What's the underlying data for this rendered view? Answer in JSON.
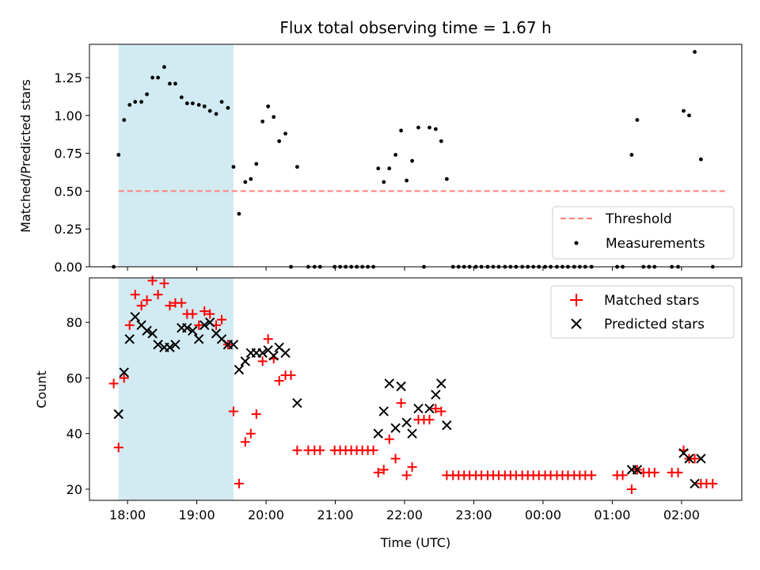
{
  "chart_data": [
    {
      "type": "scatter",
      "title": "Flux total observing time = 1.67 h",
      "ylabel": "Matched/Predicted stars",
      "xlabel": "",
      "x_unit": "time (UTC, hours; values past 24 are after midnight)",
      "xlim": [
        17.45,
        26.87
      ],
      "ylim": [
        0,
        1.47
      ],
      "yticks": [
        0.0,
        0.25,
        0.5,
        0.75,
        1.0,
        1.25
      ],
      "ytick_labels": [
        "0.00",
        "0.25",
        "0.50",
        "0.75",
        "1.00",
        "1.25"
      ],
      "xticks": [
        18,
        19,
        20,
        21,
        22,
        23,
        24,
        25,
        26
      ],
      "shaded_region": {
        "x": [
          17.87,
          19.53
        ],
        "color": "#add8e6"
      },
      "threshold": {
        "name": "Threshold",
        "value": 0.5,
        "x": [
          17.87,
          26.67
        ],
        "color": "#ff7f7f"
      },
      "legend": {
        "position": "lower-right",
        "entries": [
          "Threshold",
          "Measurements"
        ]
      },
      "series": [
        {
          "name": "Measurements",
          "marker": "dot",
          "color": "#000000",
          "points": [
            [
              17.8,
              0
            ],
            [
              17.87,
              0.74
            ],
            [
              17.95,
              0.97
            ],
            [
              18.03,
              1.07
            ],
            [
              18.11,
              1.09
            ],
            [
              18.2,
              1.09
            ],
            [
              18.28,
              1.14
            ],
            [
              18.36,
              1.25
            ],
            [
              18.44,
              1.25
            ],
            [
              18.53,
              1.32
            ],
            [
              18.61,
              1.21
            ],
            [
              18.69,
              1.21
            ],
            [
              18.78,
              1.12
            ],
            [
              18.86,
              1.08
            ],
            [
              18.94,
              1.08
            ],
            [
              19.03,
              1.07
            ],
            [
              19.11,
              1.06
            ],
            [
              19.19,
              1.03
            ],
            [
              19.28,
              1.01
            ],
            [
              19.36,
              1.09
            ],
            [
              19.45,
              1.05
            ],
            [
              19.53,
              0.66
            ],
            [
              19.61,
              0.35
            ],
            [
              19.7,
              0.56
            ],
            [
              19.78,
              0.58
            ],
            [
              19.86,
              0.68
            ],
            [
              19.95,
              0.96
            ],
            [
              20.03,
              1.06
            ],
            [
              20.11,
              0.99
            ],
            [
              20.19,
              0.83
            ],
            [
              20.28,
              0.88
            ],
            [
              20.36,
              0
            ],
            [
              20.45,
              0.66
            ],
            [
              20.61,
              0
            ],
            [
              20.7,
              0
            ],
            [
              20.78,
              0
            ],
            [
              20.99,
              0
            ],
            [
              21.07,
              0
            ],
            [
              21.15,
              0
            ],
            [
              21.23,
              0
            ],
            [
              21.31,
              0
            ],
            [
              21.39,
              0
            ],
            [
              21.47,
              0
            ],
            [
              21.55,
              0
            ],
            [
              21.62,
              0.65
            ],
            [
              21.7,
              0.56
            ],
            [
              21.78,
              0.65
            ],
            [
              21.87,
              0.74
            ],
            [
              21.95,
              0.9
            ],
            [
              22.03,
              0.57
            ],
            [
              22.11,
              0.7
            ],
            [
              22.2,
              0.92
            ],
            [
              22.28,
              0
            ],
            [
              22.36,
              0.92
            ],
            [
              22.45,
              0.91
            ],
            [
              22.53,
              0.83
            ],
            [
              22.61,
              0.58
            ],
            [
              22.7,
              0
            ],
            [
              22.78,
              0
            ],
            [
              22.86,
              0
            ],
            [
              22.94,
              0
            ],
            [
              23.03,
              0
            ],
            [
              23.11,
              0
            ],
            [
              23.2,
              0
            ],
            [
              23.28,
              0
            ],
            [
              23.36,
              0
            ],
            [
              23.45,
              0
            ],
            [
              23.53,
              0
            ],
            [
              23.61,
              0
            ],
            [
              23.7,
              0
            ],
            [
              23.78,
              0
            ],
            [
              23.86,
              0
            ],
            [
              23.94,
              0
            ],
            [
              24.03,
              0
            ],
            [
              24.11,
              0
            ],
            [
              24.2,
              0
            ],
            [
              24.28,
              0
            ],
            [
              24.36,
              0
            ],
            [
              24.45,
              0
            ],
            [
              24.53,
              0
            ],
            [
              24.61,
              0
            ],
            [
              24.7,
              0
            ],
            [
              25.07,
              0
            ],
            [
              25.15,
              0
            ],
            [
              25.28,
              0.74
            ],
            [
              25.36,
              0.97
            ],
            [
              25.45,
              0
            ],
            [
              25.53,
              0
            ],
            [
              25.61,
              0
            ],
            [
              25.86,
              0
            ],
            [
              25.95,
              0
            ],
            [
              26.03,
              1.03
            ],
            [
              26.11,
              1.0
            ],
            [
              26.19,
              1.42
            ],
            [
              26.28,
              0.71
            ],
            [
              26.45,
              0
            ]
          ]
        }
      ]
    },
    {
      "type": "scatter",
      "title": "",
      "xlabel": "Time (UTC)",
      "ylabel": "Count",
      "xlim": [
        17.45,
        26.87
      ],
      "ylim": [
        16,
        96
      ],
      "yticks": [
        20,
        40,
        60,
        80
      ],
      "ytick_labels": [
        "20",
        "40",
        "60",
        "80"
      ],
      "xticks": [
        18,
        19,
        20,
        21,
        22,
        23,
        24,
        25,
        26
      ],
      "xtick_labels": [
        "18:00",
        "19:00",
        "20:00",
        "21:00",
        "22:00",
        "23:00",
        "00:00",
        "01:00",
        "02:00"
      ],
      "shaded_region": {
        "x": [
          17.87,
          19.53
        ],
        "color": "#add8e6"
      },
      "legend": {
        "position": "top-right",
        "entries": [
          "Matched stars",
          "Predicted stars"
        ]
      },
      "series": [
        {
          "name": "Matched stars",
          "marker": "plus",
          "color": "#ff0000",
          "points": [
            [
              17.8,
              58
            ],
            [
              17.87,
              35
            ],
            [
              17.95,
              60
            ],
            [
              18.03,
              79
            ],
            [
              18.11,
              90
            ],
            [
              18.2,
              86
            ],
            [
              18.28,
              88
            ],
            [
              18.36,
              95
            ],
            [
              18.44,
              90
            ],
            [
              18.53,
              94
            ],
            [
              18.61,
              86
            ],
            [
              18.69,
              87
            ],
            [
              18.78,
              87
            ],
            [
              18.86,
              83
            ],
            [
              18.94,
              83
            ],
            [
              19.03,
              79
            ],
            [
              19.11,
              84
            ],
            [
              19.19,
              83
            ],
            [
              19.28,
              79
            ],
            [
              19.36,
              81
            ],
            [
              19.45,
              72
            ],
            [
              19.53,
              48
            ],
            [
              19.61,
              22
            ],
            [
              19.7,
              37
            ],
            [
              19.78,
              40
            ],
            [
              19.86,
              47
            ],
            [
              19.95,
              66
            ],
            [
              20.03,
              74
            ],
            [
              20.11,
              67
            ],
            [
              20.19,
              59
            ],
            [
              20.28,
              61
            ],
            [
              20.36,
              61
            ],
            [
              20.45,
              34
            ],
            [
              20.61,
              34
            ],
            [
              20.7,
              34
            ],
            [
              20.78,
              34
            ],
            [
              20.99,
              34
            ],
            [
              21.07,
              34
            ],
            [
              21.15,
              34
            ],
            [
              21.23,
              34
            ],
            [
              21.31,
              34
            ],
            [
              21.39,
              34
            ],
            [
              21.47,
              34
            ],
            [
              21.55,
              34
            ],
            [
              21.62,
              26
            ],
            [
              21.7,
              27
            ],
            [
              21.78,
              38
            ],
            [
              21.87,
              31
            ],
            [
              21.95,
              51
            ],
            [
              22.03,
              25
            ],
            [
              22.11,
              28
            ],
            [
              22.2,
              45
            ],
            [
              22.28,
              45
            ],
            [
              22.36,
              45
            ],
            [
              22.45,
              49
            ],
            [
              22.53,
              48
            ],
            [
              22.61,
              25
            ],
            [
              22.7,
              25
            ],
            [
              22.78,
              25
            ],
            [
              22.86,
              25
            ],
            [
              22.94,
              25
            ],
            [
              23.03,
              25
            ],
            [
              23.11,
              25
            ],
            [
              23.2,
              25
            ],
            [
              23.28,
              25
            ],
            [
              23.36,
              25
            ],
            [
              23.45,
              25
            ],
            [
              23.53,
              25
            ],
            [
              23.61,
              25
            ],
            [
              23.7,
              25
            ],
            [
              23.78,
              25
            ],
            [
              23.86,
              25
            ],
            [
              23.94,
              25
            ],
            [
              24.03,
              25
            ],
            [
              24.11,
              25
            ],
            [
              24.2,
              25
            ],
            [
              24.28,
              25
            ],
            [
              24.36,
              25
            ],
            [
              24.45,
              25
            ],
            [
              24.53,
              25
            ],
            [
              24.61,
              25
            ],
            [
              24.7,
              25
            ],
            [
              25.07,
              25
            ],
            [
              25.15,
              25
            ],
            [
              25.28,
              20
            ],
            [
              25.36,
              27
            ],
            [
              25.45,
              26
            ],
            [
              25.53,
              26
            ],
            [
              25.61,
              26
            ],
            [
              25.86,
              26
            ],
            [
              25.95,
              26
            ],
            [
              26.03,
              34
            ],
            [
              26.11,
              31
            ],
            [
              26.19,
              31
            ],
            [
              26.28,
              22
            ],
            [
              26.36,
              22
            ],
            [
              26.45,
              22
            ]
          ]
        },
        {
          "name": "Predicted stars",
          "marker": "x",
          "color": "#000000",
          "points": [
            [
              17.87,
              47
            ],
            [
              17.95,
              62
            ],
            [
              18.03,
              74
            ],
            [
              18.11,
              82
            ],
            [
              18.2,
              79
            ],
            [
              18.28,
              77
            ],
            [
              18.36,
              76
            ],
            [
              18.44,
              72
            ],
            [
              18.53,
              71
            ],
            [
              18.61,
              71
            ],
            [
              18.69,
              72
            ],
            [
              18.78,
              78
            ],
            [
              18.86,
              78
            ],
            [
              18.94,
              77
            ],
            [
              19.03,
              74
            ],
            [
              19.11,
              79
            ],
            [
              19.19,
              80
            ],
            [
              19.28,
              76
            ],
            [
              19.36,
              74
            ],
            [
              19.45,
              72
            ],
            [
              19.53,
              72
            ],
            [
              19.61,
              63
            ],
            [
              19.7,
              66
            ],
            [
              19.78,
              69
            ],
            [
              19.86,
              69
            ],
            [
              19.95,
              69
            ],
            [
              20.03,
              70
            ],
            [
              20.11,
              68
            ],
            [
              20.19,
              71
            ],
            [
              20.28,
              69
            ],
            [
              20.45,
              51
            ],
            [
              21.62,
              40
            ],
            [
              21.7,
              48
            ],
            [
              21.78,
              58
            ],
            [
              21.87,
              42
            ],
            [
              21.95,
              57
            ],
            [
              22.03,
              44
            ],
            [
              22.11,
              40
            ],
            [
              22.2,
              49
            ],
            [
              22.36,
              49
            ],
            [
              22.45,
              54
            ],
            [
              22.53,
              58
            ],
            [
              22.61,
              43
            ],
            [
              25.28,
              27
            ],
            [
              25.36,
              27
            ],
            [
              26.03,
              33
            ],
            [
              26.11,
              31
            ],
            [
              26.19,
              22
            ],
            [
              26.28,
              31
            ]
          ]
        }
      ]
    }
  ]
}
